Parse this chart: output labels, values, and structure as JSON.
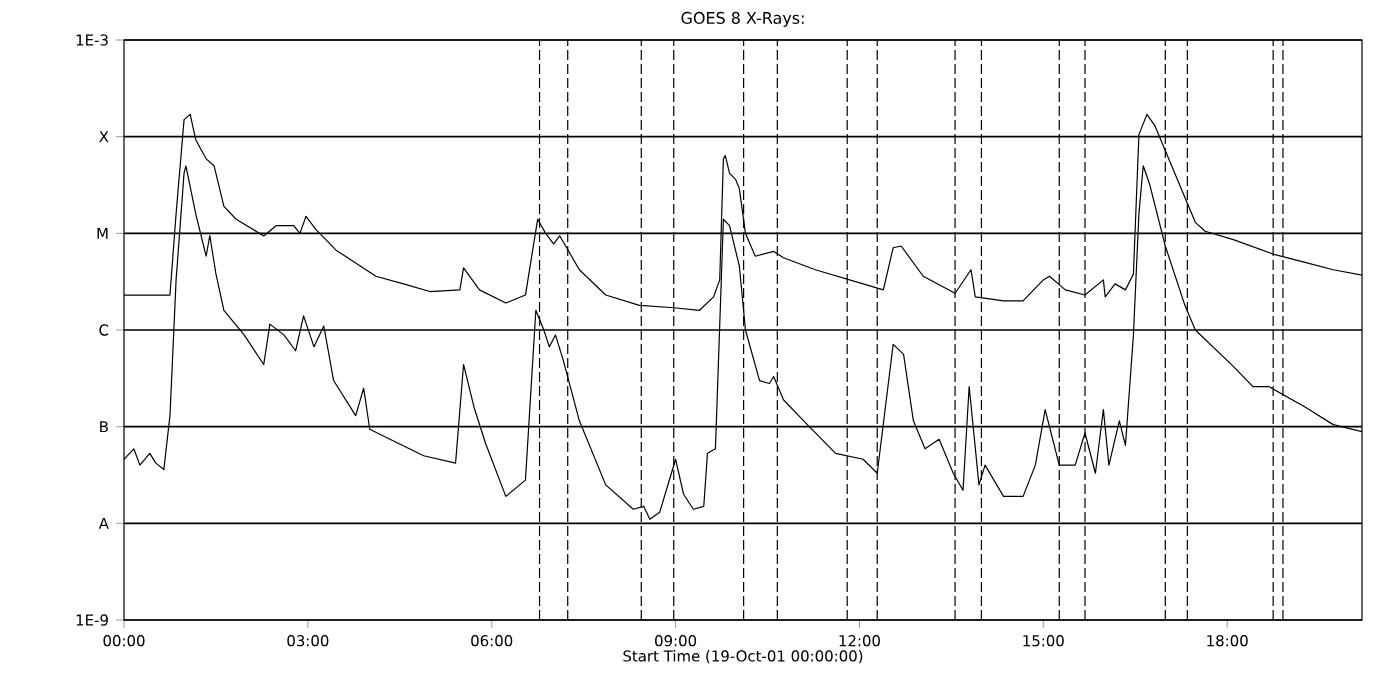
{
  "chart_data": {
    "type": "line",
    "title": "GOES 8 X-Rays:",
    "xlabel": "Start Time (19-Oct-01 00:00:00)",
    "log": "y",
    "grid": "y",
    "xlim": [
      0,
      20.2
    ],
    "ylim": [
      1e-09,
      0.001
    ],
    "xticks": [
      {
        "value": 0,
        "label": "00:00"
      },
      {
        "value": 3,
        "label": "03:00"
      },
      {
        "value": 6,
        "label": "06:00"
      },
      {
        "value": 9,
        "label": "09:00"
      },
      {
        "value": 12,
        "label": "12:00"
      },
      {
        "value": 15,
        "label": "15:00"
      },
      {
        "value": 18,
        "label": "18:00"
      }
    ],
    "yticks": [
      {
        "value": 1e-09,
        "label": "1E-9"
      },
      {
        "value": 1e-08,
        "label": "A"
      },
      {
        "value": 1e-07,
        "label": "B"
      },
      {
        "value": 1e-06,
        "label": "C"
      },
      {
        "value": 1e-05,
        "label": "M"
      },
      {
        "value": 0.0001,
        "label": "X"
      },
      {
        "value": 0.001,
        "label": "1E-3"
      }
    ],
    "ref_lines": [
      {
        "axis": "x",
        "value": 6.78,
        "line_style": "dashed"
      },
      {
        "axis": "x",
        "value": 7.24,
        "line_style": "dashed"
      },
      {
        "axis": "x",
        "value": 8.44,
        "line_style": "dashed"
      },
      {
        "axis": "x",
        "value": 8.97,
        "line_style": "dashed"
      },
      {
        "axis": "x",
        "value": 10.11,
        "line_style": "dashed"
      },
      {
        "axis": "x",
        "value": 10.66,
        "line_style": "dashed"
      },
      {
        "axis": "x",
        "value": 11.8,
        "line_style": "dashed"
      },
      {
        "axis": "x",
        "value": 12.29,
        "line_style": "dashed"
      },
      {
        "axis": "x",
        "value": 13.56,
        "line_style": "dashed"
      },
      {
        "axis": "x",
        "value": 13.99,
        "line_style": "dashed"
      },
      {
        "axis": "x",
        "value": 15.26,
        "line_style": "dashed"
      },
      {
        "axis": "x",
        "value": 15.68,
        "line_style": "dashed"
      },
      {
        "axis": "x",
        "value": 16.99,
        "line_style": "dashed"
      },
      {
        "axis": "x",
        "value": 17.35,
        "line_style": "dashed"
      },
      {
        "axis": "x",
        "value": 18.75,
        "line_style": "dashed"
      },
      {
        "axis": "x",
        "value": 18.91,
        "line_style": "dashed"
      }
    ],
    "series": [
      {
        "color": "#000000",
        "x": [
          0,
          0.75,
          0.85,
          0.98,
          1.08,
          1.17,
          1.34,
          1.47,
          1.63,
          1.83,
          2.28,
          2.48,
          2.77,
          2.87,
          2.97,
          3.13,
          3.46,
          4.11,
          4.56,
          4.99,
          5.48,
          5.54,
          5.8,
          6.23,
          6.55,
          6.75,
          6.88,
          7.01,
          7.11,
          7.43,
          7.86,
          8.41,
          8.97,
          9.39,
          9.62,
          9.72,
          9.78,
          9.81,
          9.88,
          9.98,
          10.04,
          10.14,
          10.3,
          10.6,
          10.76,
          11.28,
          12.06,
          12.39,
          12.55,
          12.68,
          13.04,
          13.56,
          13.82,
          13.89,
          14.35,
          14.67,
          15.0,
          15.1,
          15.36,
          15.68,
          15.98,
          16.01,
          16.17,
          16.34,
          16.47,
          16.56,
          16.69,
          16.82,
          17.48,
          17.64,
          18.1,
          18.75,
          19.27,
          19.73,
          20.2
        ],
        "values": [
          2.3e-06,
          2.3e-06,
          1.6e-05,
          0.00015,
          0.00017,
          9.3e-05,
          5.9e-05,
          5e-05,
          1.9e-05,
          1.4e-05,
          9.4e-06,
          1.2e-05,
          1.2e-05,
          1e-05,
          1.5e-05,
          1.1e-05,
          6.7e-06,
          3.6e-06,
          3e-06,
          2.5e-06,
          2.6e-06,
          4.4e-06,
          2.6e-06,
          1.9e-06,
          2.3e-06,
          1.4e-05,
          1e-05,
          7.8e-06,
          9.4e-06,
          4.2e-06,
          2.3e-06,
          1.8e-06,
          1.7e-06,
          1.6e-06,
          2.2e-06,
          3.3e-06,
          5.9e-05,
          6.4e-05,
          4.2e-05,
          3.6e-05,
          2.9e-05,
          1e-05,
          5.8e-06,
          6.5e-06,
          5.6e-06,
          4.2e-06,
          3e-06,
          2.6e-06,
          7.1e-06,
          7.4e-06,
          3.6e-06,
          2.4e-06,
          4.2e-06,
          2.2e-06,
          2e-06,
          2e-06,
          3.3e-06,
          3.6e-06,
          2.6e-06,
          2.3e-06,
          3.3e-06,
          2.2e-06,
          3e-06,
          2.6e-06,
          3.8e-06,
          0.000105,
          0.00017,
          0.00013,
          1.3e-05,
          1.05e-05,
          8.6e-06,
          6.1e-06,
          5e-06,
          4.2e-06,
          3.7e-06
        ]
      },
      {
        "color": "#000000",
        "x": [
          0,
          0.16,
          0.26,
          0.42,
          0.52,
          0.65,
          0.75,
          0.85,
          0.98,
          1.01,
          1.17,
          1.34,
          1.4,
          1.5,
          1.63,
          1.96,
          2.28,
          2.38,
          2.61,
          2.8,
          2.93,
          3.1,
          3.26,
          3.42,
          3.78,
          3.91,
          4.01,
          4.34,
          4.89,
          5.41,
          5.54,
          5.71,
          5.9,
          6.23,
          6.55,
          6.72,
          6.85,
          6.94,
          7.04,
          7.17,
          7.43,
          7.86,
          8.31,
          8.48,
          8.58,
          8.74,
          9.0,
          9.13,
          9.29,
          9.46,
          9.52,
          9.65,
          9.78,
          9.88,
          10.04,
          10.14,
          10.37,
          10.53,
          10.6,
          10.76,
          11.09,
          11.61,
          12.06,
          12.29,
          12.55,
          12.72,
          12.88,
          13.07,
          13.3,
          13.53,
          13.69,
          13.79,
          13.95,
          14.05,
          14.35,
          14.67,
          14.87,
          15.03,
          15.26,
          15.52,
          15.68,
          15.85,
          15.98,
          16.07,
          16.24,
          16.34,
          16.47,
          16.56,
          16.63,
          16.73,
          16.99,
          17.31,
          17.48,
          18.1,
          18.42,
          18.68,
          19.27,
          19.73,
          20.2
        ],
        "values": [
          4.6e-08,
          5.9e-08,
          4e-08,
          5.3e-08,
          4.2e-08,
          3.6e-08,
          1.3e-07,
          3.3e-06,
          4.2e-05,
          5e-05,
          1.6e-05,
          5.8e-06,
          9.5e-06,
          3.8e-06,
          1.6e-06,
          8.9e-07,
          4.4e-07,
          1.15e-06,
          8.9e-07,
          6.1e-07,
          1.4e-06,
          6.7e-07,
          1.1e-06,
          3e-07,
          1.3e-07,
          2.5e-07,
          9.4e-08,
          7.4e-08,
          5e-08,
          4.2e-08,
          4.4e-07,
          1.6e-07,
          6.7e-08,
          1.9e-08,
          2.8e-08,
          1.6e-06,
          1e-06,
          6.7e-07,
          8.9e-07,
          4.8e-07,
          1.15e-07,
          2.5e-08,
          1.4e-08,
          1.5e-08,
          1.1e-08,
          1.3e-08,
          4.6e-08,
          2e-08,
          1.4e-08,
          1.5e-08,
          5.3e-08,
          5.9e-08,
          1.4e-05,
          1.2e-05,
          4.6e-06,
          1e-06,
          3e-07,
          2.8e-07,
          3.3e-07,
          1.9e-07,
          1.15e-07,
          5.3e-08,
          4.6e-08,
          3.3e-08,
          7.1e-07,
          5.6e-07,
          1.15e-07,
          5.9e-08,
          7.4e-08,
          3.3e-08,
          2.2e-08,
          2.6e-07,
          2.5e-08,
          4e-08,
          1.9e-08,
          1.9e-08,
          4e-08,
          1.5e-07,
          4e-08,
          4e-08,
          8.6e-08,
          3.3e-08,
          1.5e-07,
          4e-08,
          1.15e-07,
          6.4e-08,
          8.9e-07,
          1.6e-05,
          5e-05,
          3.3e-05,
          7.4e-06,
          1.8e-06,
          1e-06,
          4.2e-07,
          2.6e-07,
          2.6e-07,
          1.6e-07,
          1.05e-07,
          8.9e-08
        ]
      }
    ]
  }
}
